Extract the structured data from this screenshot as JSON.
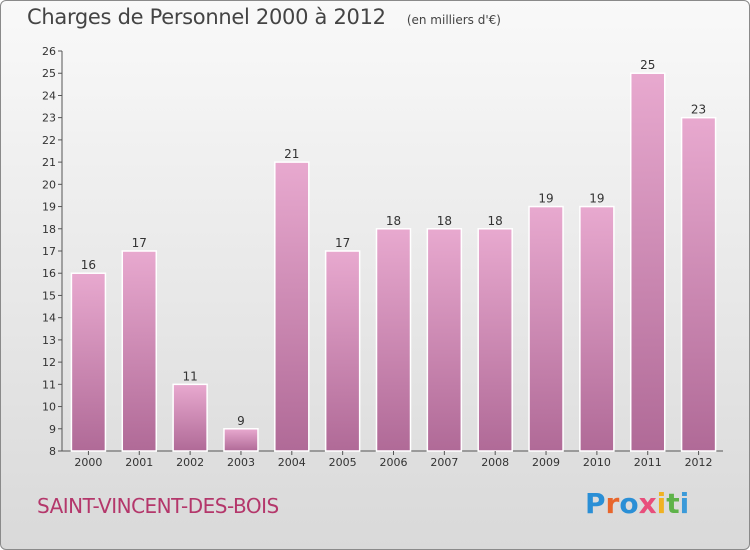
{
  "header": {
    "title": "Charges de Personnel 2000 à 2012",
    "subtitle": "(en milliers d'€)"
  },
  "footer": {
    "commune": "SAINT-VINCENT-DES-BOIS",
    "logo_text": "Proxiti"
  },
  "colors": {
    "bar_top": "#e8a9cf",
    "bar_bottom": "#b06a97",
    "commune_text": "#b4376b"
  },
  "chart_data": {
    "type": "bar",
    "title": "Charges de Personnel 2000 à 2012",
    "subtitle": "(en milliers d'€)",
    "categories": [
      "2000",
      "2001",
      "2002",
      "2003",
      "2004",
      "2005",
      "2006",
      "2007",
      "2008",
      "2009",
      "2010",
      "2011",
      "2012"
    ],
    "values": [
      16,
      17,
      11,
      9,
      21,
      17,
      18,
      18,
      18,
      19,
      19,
      25,
      23
    ],
    "ylim": [
      8,
      26
    ],
    "yticks": [
      8,
      9,
      10,
      11,
      12,
      13,
      14,
      15,
      16,
      17,
      18,
      19,
      20,
      21,
      22,
      23,
      24,
      25,
      26
    ],
    "grid": false,
    "data_labels": true
  }
}
